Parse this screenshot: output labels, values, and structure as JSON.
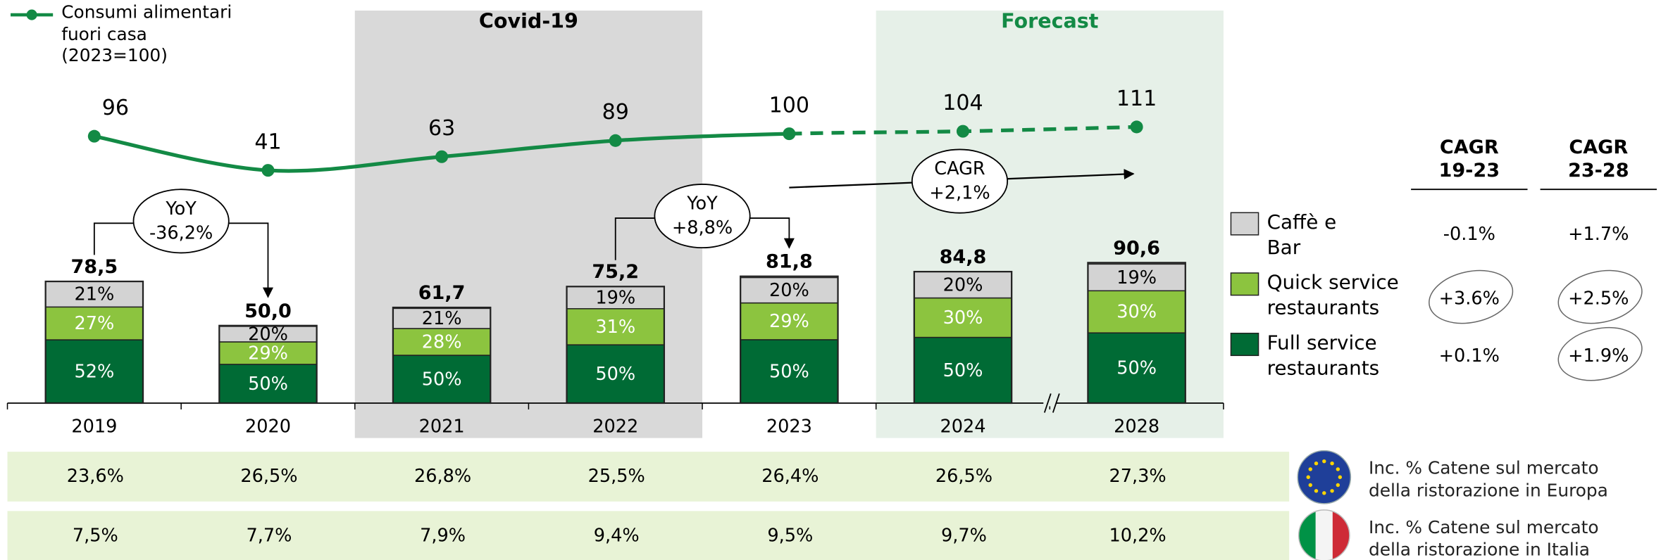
{
  "chart_data": {
    "type": "bar",
    "stacked": true,
    "categories": [
      "2019",
      "2020",
      "2021",
      "2022",
      "2023",
      "2024",
      "2028"
    ],
    "totals": {
      "values": [
        78.5,
        50.0,
        61.7,
        75.2,
        81.8,
        84.8,
        90.6
      ],
      "value_labels": [
        "78,5",
        "50,0",
        "61,7",
        "75,2",
        "81,8",
        "84,8",
        "90,6"
      ]
    },
    "series": [
      {
        "name": "Full service restaurants",
        "color": "#006b35",
        "values": [
          52,
          50,
          50,
          50,
          50,
          50,
          50
        ],
        "value_labels": [
          "52%",
          "50%",
          "50%",
          "50%",
          "50%",
          "50%",
          "50%"
        ]
      },
      {
        "name": "Quick service restaurants",
        "color": "#8cc43f",
        "values": [
          27,
          29,
          28,
          31,
          29,
          30,
          30
        ],
        "value_labels": [
          "27%",
          "29%",
          "28%",
          "31%",
          "29%",
          "30%",
          "30%"
        ]
      },
      {
        "name": "Caffè e Bar",
        "color": "#d3d3d3",
        "values": [
          21,
          20,
          21,
          19,
          20,
          20,
          19
        ],
        "value_labels": [
          "21%",
          "20%",
          "21%",
          "19%",
          "20%",
          "20%",
          "19%"
        ]
      }
    ],
    "line": {
      "name": "Consumi alimentari fuori casa (2023=100)",
      "color": "#138a45",
      "values": [
        96,
        41,
        63,
        89,
        100,
        104,
        111
      ]
    },
    "regions": [
      {
        "label": "Covid-19",
        "from": "2021",
        "to": "2022",
        "color": "#d9d9d9",
        "label_color": "#000000"
      },
      {
        "label": "Forecast",
        "from": "2024",
        "to": "2028",
        "color": "#e6f0e8",
        "label_color": "#138a45",
        "dashed_line": true
      }
    ],
    "axis_break_after": "2024",
    "annotations": [
      {
        "lines": [
          "YoY",
          "-36,2%"
        ],
        "from": "2019",
        "to": "2020"
      },
      {
        "lines": [
          "YoY",
          "+8,8%"
        ],
        "from": "2022",
        "to": "2023"
      },
      {
        "lines": [
          "CAGR",
          "+2,1%"
        ],
        "from": "2023",
        "to": "2028"
      }
    ],
    "cagr_table": {
      "headers": [
        [
          "CAGR",
          "19-23"
        ],
        [
          "CAGR",
          "23-28"
        ]
      ],
      "rows": [
        [
          "-0.1%",
          "+1.7%"
        ],
        [
          "+3.6%",
          "+2.5%"
        ],
        [
          "+0.1%",
          "+1.9%"
        ]
      ],
      "circled": [
        [
          false,
          false
        ],
        [
          true,
          true
        ],
        [
          false,
          true
        ]
      ]
    },
    "share_rows": [
      {
        "label": "Inc. % Catene sul mercato della ristorazione in Europa",
        "values": [
          23.6,
          26.5,
          26.8,
          25.5,
          26.4,
          26.5,
          27.3
        ],
        "value_labels": [
          "23,6%",
          "26,5%",
          "26,8%",
          "25,5%",
          "26,4%",
          "26,5%",
          "27,3%"
        ]
      },
      {
        "label": "Inc. % Catene sul mercato della ristorazione in Italia",
        "values": [
          7.5,
          7.7,
          7.9,
          9.4,
          9.5,
          9.7,
          10.2
        ],
        "value_labels": [
          "7,5%",
          "7,7%",
          "7,9%",
          "9,4%",
          "9,5%",
          "9,7%",
          "10,2%"
        ]
      }
    ]
  }
}
